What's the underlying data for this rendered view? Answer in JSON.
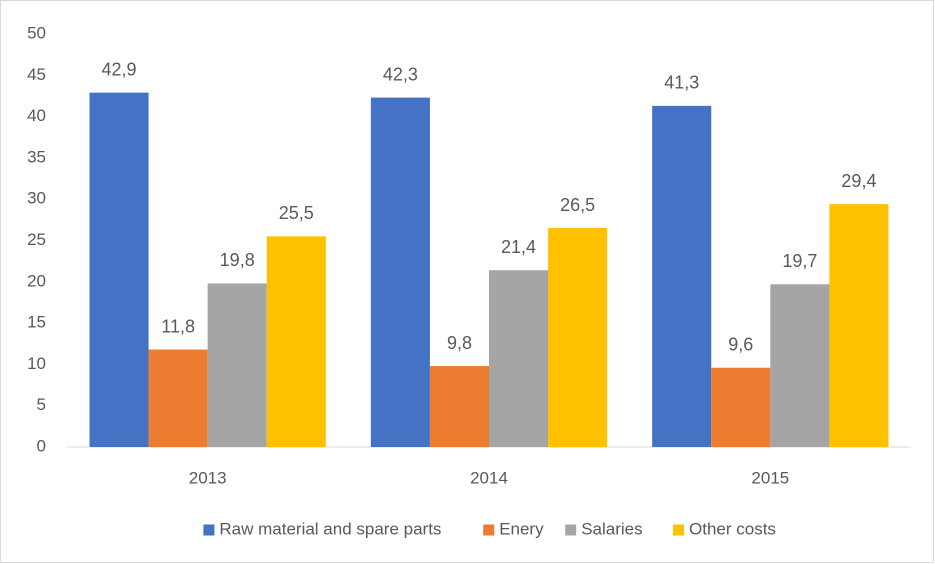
{
  "chart_data": {
    "type": "bar",
    "categories": [
      "2013",
      "2014",
      "2015"
    ],
    "series": [
      {
        "name": "Raw material and spare parts",
        "color": "#4472c4",
        "values": [
          42.9,
          42.3,
          41.3
        ],
        "value_labels": [
          "42,9",
          "42,3",
          "41,3"
        ]
      },
      {
        "name": "Enery",
        "color": "#ed7d31",
        "values": [
          11.8,
          9.8,
          9.6
        ],
        "value_labels": [
          "11,8",
          "9,8",
          "9,6"
        ]
      },
      {
        "name": "Salaries",
        "color": "#a5a5a5",
        "values": [
          19.8,
          21.4,
          19.7
        ],
        "value_labels": [
          "19,8",
          "21,4",
          "19,7"
        ]
      },
      {
        "name": "Other costs",
        "color": "#ffc000",
        "values": [
          25.5,
          26.5,
          29.4
        ],
        "value_labels": [
          "25,5",
          "26,5",
          "29,4"
        ]
      }
    ],
    "ylim": [
      0,
      50
    ],
    "yticks": [
      0,
      5,
      10,
      15,
      20,
      25,
      30,
      35,
      40,
      45,
      50
    ],
    "grid": false,
    "legend": "bottom"
  }
}
